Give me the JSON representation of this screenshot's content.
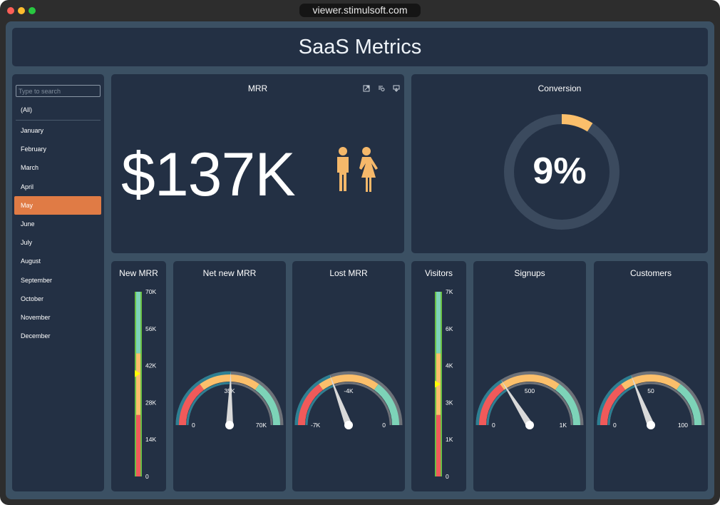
{
  "browser": {
    "url": "viewer.stimulsoft.com"
  },
  "header": {
    "title": "SaaS Metrics"
  },
  "sidebar": {
    "search_placeholder": "Type to search",
    "all_label": "(All)",
    "items": [
      "January",
      "February",
      "March",
      "April",
      "May",
      "June",
      "July",
      "August",
      "September",
      "October",
      "November",
      "December"
    ],
    "selected": "May"
  },
  "mrr": {
    "title": "MRR",
    "value": "$137K",
    "icons": [
      "male-person-icon",
      "female-person-icon",
      "expand-icon",
      "drill-down-icon",
      "export-icon"
    ]
  },
  "conversion": {
    "title": "Conversion",
    "value": "9%",
    "percent": 9
  },
  "colors": {
    "accent": "#e07b45",
    "red": "#f05a5a",
    "orange": "#fbbf6b",
    "teal": "#7dd3b8",
    "panel": "#233044",
    "background": "#3b5063",
    "needle": "#d9d9d9",
    "marker": "#ffff00"
  },
  "linear_gauges": [
    {
      "title": "New MRR",
      "min": 0,
      "max": 70000,
      "value": 39000,
      "ticks": [
        "0",
        "14K",
        "28K",
        "42K",
        "56K",
        "70K"
      ]
    },
    {
      "title": "Visitors",
      "min": 0,
      "max": 7000,
      "value": 3500,
      "ticks": [
        "0",
        "1K",
        "3K",
        "4K",
        "6K",
        "7K"
      ]
    }
  ],
  "radial_gauges": [
    {
      "title": "Net new MRR",
      "min": 0,
      "max": 70000,
      "value": 35500,
      "labels": [
        "0",
        "35K",
        "70K"
      ]
    },
    {
      "title": "Lost MRR",
      "min": -7000,
      "max": 0,
      "value": -4300,
      "labels": [
        "-7K",
        "-4K",
        "0"
      ]
    },
    {
      "title": "Signups",
      "min": 0,
      "max": 1000,
      "value": 320,
      "labels": [
        "0",
        "500",
        "1K"
      ]
    },
    {
      "title": "Customers",
      "min": 0,
      "max": 100,
      "value": 38,
      "labels": [
        "0",
        "50",
        "100"
      ]
    }
  ]
}
